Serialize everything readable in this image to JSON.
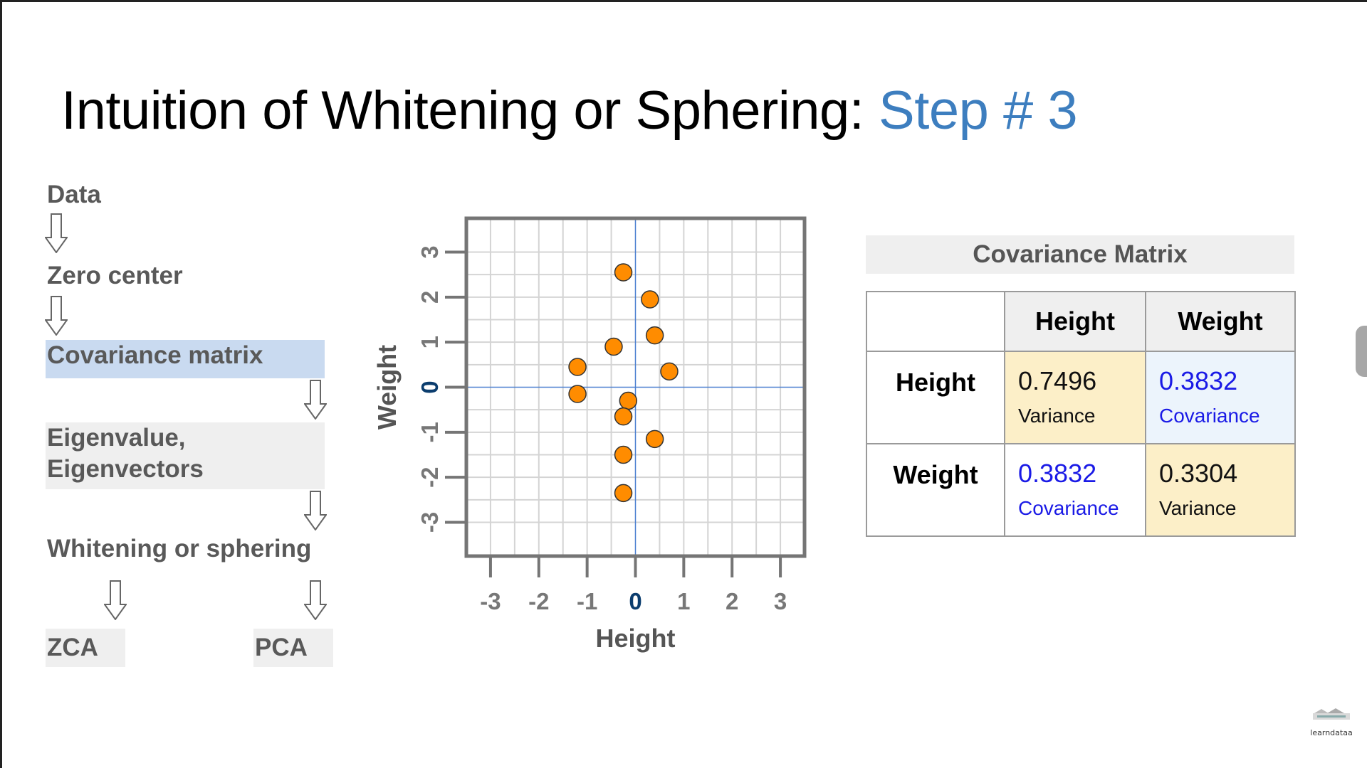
{
  "slide": {
    "title_main": "Intuition of Whitening or Sphering: ",
    "title_accent": "Step # 3",
    "accent_color": "#3d7ebf"
  },
  "flow": {
    "data": "Data",
    "zero_center": "Zero center",
    "covariance": "Covariance matrix",
    "eigen_line1": "Eigenvalue,",
    "eigen_line2": "Eigenvectors",
    "whitening": "Whitening or sphering",
    "zca": "ZCA",
    "pca": "PCA",
    "arrow_icon": "down-arrow-icon"
  },
  "chart_data": {
    "type": "scatter",
    "xlabel": "Height",
    "ylabel": "Weight",
    "xlim": [
      -3.5,
      3.5
    ],
    "ylim": [
      -3.75,
      3.75
    ],
    "xticks": [
      "-3",
      "-2",
      "-1",
      "0",
      "1",
      "2",
      "3"
    ],
    "yticks": [
      "-3",
      "-2",
      "-1",
      "0",
      "1",
      "2",
      "3"
    ],
    "grid": true,
    "point_color": "#ff8c00",
    "points": [
      {
        "x": -0.25,
        "y": 2.55
      },
      {
        "x": 0.3,
        "y": 1.95
      },
      {
        "x": 0.4,
        "y": 1.15
      },
      {
        "x": -0.45,
        "y": 0.9
      },
      {
        "x": -1.2,
        "y": 0.45
      },
      {
        "x": 0.7,
        "y": 0.35
      },
      {
        "x": -1.2,
        "y": -0.15
      },
      {
        "x": -0.15,
        "y": -0.3
      },
      {
        "x": -0.25,
        "y": -0.65
      },
      {
        "x": 0.4,
        "y": -1.15
      },
      {
        "x": -0.25,
        "y": -1.5
      },
      {
        "x": -0.25,
        "y": -2.35
      }
    ]
  },
  "covariance": {
    "title": "Covariance Matrix",
    "col_headers": [
      "Height",
      "Weight"
    ],
    "row_headers": [
      "Height",
      "Weight"
    ],
    "cells": [
      [
        {
          "value": "0.7496",
          "label": "Variance"
        },
        {
          "value": "0.3832",
          "label": "Covariance"
        }
      ],
      [
        {
          "value": "0.3832",
          "label": "Covariance"
        },
        {
          "value": "0.3304",
          "label": "Variance"
        }
      ]
    ],
    "variance_color": "#fcefc8",
    "covariance_text_color": "#1a1ae6"
  },
  "branding": {
    "logo_text": "learndataa",
    "logo_icon": "learndataa-logo-icon"
  }
}
